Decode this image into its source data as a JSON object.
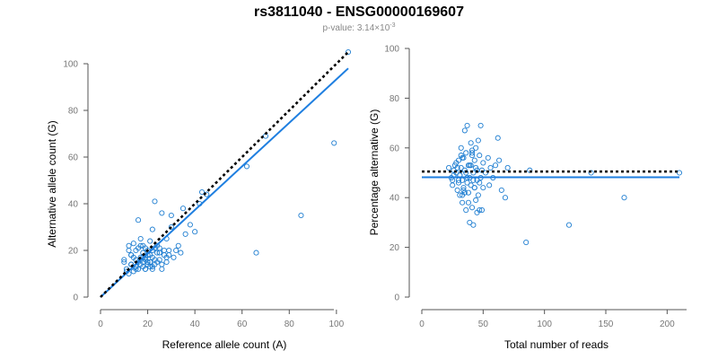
{
  "figure": {
    "title": "rs3811040 - ENSG00000169607",
    "pvalue_prefix": "p-value: 3.14×10",
    "pvalue_exponent": "-3"
  },
  "chart_data": [
    {
      "type": "scatter",
      "name": "allele-count-scatter",
      "xlabel": "Reference allele count (A)",
      "ylabel": "Alternative allele count (G)",
      "xlim": [
        0,
        105
      ],
      "ylim": [
        0,
        100
      ],
      "xticks": [
        0,
        20,
        40,
        60,
        80,
        100
      ],
      "yticks": [
        0,
        20,
        40,
        60,
        80,
        100
      ],
      "ref_line": {
        "style": "dotted",
        "color": "#000000",
        "points": [
          [
            0,
            0
          ],
          [
            105,
            105
          ]
        ]
      },
      "fit_line": {
        "style": "solid",
        "color": "#1f7fe0",
        "points": [
          [
            0,
            0
          ],
          [
            105,
            98
          ]
        ]
      },
      "x": [
        10,
        11,
        12,
        12,
        13,
        13,
        14,
        14,
        15,
        15,
        15,
        16,
        16,
        16,
        17,
        17,
        17,
        18,
        18,
        18,
        19,
        19,
        19,
        20,
        20,
        20,
        21,
        21,
        22,
        22,
        22,
        23,
        23,
        24,
        24,
        25,
        25,
        26,
        26,
        27,
        28,
        28,
        29,
        30,
        30,
        31,
        32,
        33,
        34,
        35,
        36,
        38,
        40,
        42,
        43,
        45,
        62,
        66,
        70,
        85,
        99,
        105,
        10,
        12,
        14,
        16,
        18,
        20,
        22,
        24,
        26,
        28,
        11,
        13,
        15,
        17,
        19,
        21,
        23,
        25,
        27,
        29,
        13,
        15,
        17,
        19,
        21,
        23,
        25,
        18,
        20,
        22
      ],
      "y": [
        15,
        12,
        10,
        22,
        14,
        18,
        11,
        23,
        13,
        16,
        20,
        12,
        15,
        33,
        14,
        17,
        25,
        13,
        19,
        22,
        12,
        16,
        21,
        15,
        18,
        20,
        13,
        24,
        12,
        17,
        29,
        14,
        41,
        15,
        22,
        16,
        19,
        12,
        36,
        18,
        15,
        25,
        20,
        35,
        30,
        17,
        20,
        22,
        19,
        38,
        27,
        31,
        28,
        40,
        45,
        44,
        56,
        19,
        69,
        35,
        66,
        105,
        16,
        20,
        17,
        21,
        15,
        14,
        13,
        19,
        14,
        17,
        11,
        18,
        12,
        22,
        17,
        15,
        16,
        21,
        20,
        18,
        14,
        13,
        16,
        12,
        18,
        21,
        19,
        17,
        15,
        20
      ]
    },
    {
      "type": "scatter",
      "name": "percentage-scatter",
      "xlabel": "Total number of reads",
      "ylabel": "Percentage alternative (G)",
      "xlim": [
        0,
        210
      ],
      "ylim": [
        0,
        100
      ],
      "xticks": [
        0,
        50,
        100,
        150,
        200
      ],
      "yticks": [
        0,
        20,
        40,
        60,
        80,
        100
      ],
      "ref_line": {
        "style": "dotted",
        "color": "#000000",
        "y": 50.5
      },
      "fit_line": {
        "style": "solid",
        "color": "#1f7fe0",
        "y": 48.2
      },
      "x": [
        22,
        24,
        25,
        26,
        27,
        28,
        29,
        30,
        30,
        31,
        31,
        32,
        32,
        33,
        33,
        34,
        34,
        35,
        35,
        36,
        36,
        37,
        37,
        38,
        38,
        39,
        39,
        40,
        40,
        41,
        41,
        42,
        42,
        43,
        43,
        44,
        44,
        45,
        45,
        46,
        46,
        47,
        47,
        48,
        48,
        49,
        50,
        50,
        52,
        54,
        55,
        56,
        58,
        60,
        62,
        63,
        65,
        68,
        70,
        85,
        88,
        120,
        138,
        165,
        210,
        26,
        28,
        30,
        32,
        34,
        36,
        38,
        40,
        42,
        44,
        29,
        31,
        33,
        35,
        37,
        39,
        41,
        43,
        45,
        47,
        25,
        33,
        41,
        49
      ],
      "y": [
        52,
        48,
        45,
        51,
        53,
        50,
        43,
        47,
        55,
        41,
        49,
        60,
        52,
        38,
        47,
        56,
        44,
        67,
        51,
        35,
        58,
        46,
        69,
        42,
        53,
        30,
        48,
        62,
        45,
        57,
        36,
        50,
        29,
        55,
        44,
        52,
        39,
        34,
        47,
        63,
        41,
        57,
        35,
        48,
        69,
        51,
        54,
        44,
        50,
        56,
        45,
        52,
        48,
        53,
        64,
        55,
        43,
        40,
        52,
        22,
        51,
        29,
        50,
        40,
        50,
        49,
        54,
        46,
        57,
        43,
        50,
        38,
        53,
        47,
        60,
        52,
        49,
        56,
        42,
        48,
        53,
        58,
        44,
        51,
        46,
        47,
        41,
        59,
        35
      ]
    }
  ]
}
